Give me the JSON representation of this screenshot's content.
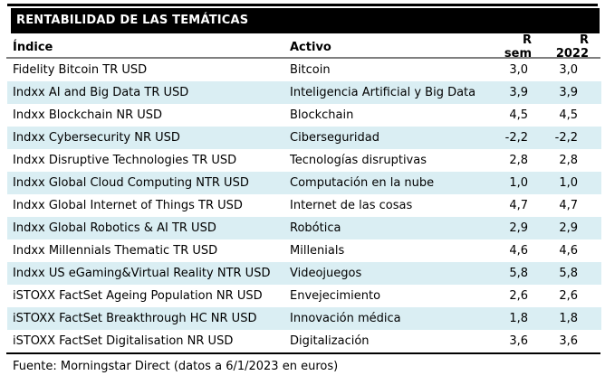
{
  "title": "RENTABILIDAD DE LAS TEMÁTICAS",
  "table": {
    "columns": [
      "Índice",
      "Activo",
      "R sem",
      "R 2022"
    ],
    "rows": [
      {
        "indice": "Fidelity Bitcoin TR USD",
        "activo": "Bitcoin",
        "r_sem": "3,0",
        "r_2022": "3,0"
      },
      {
        "indice": "Indxx AI and Big Data TR USD",
        "activo": "Inteligencia Artificial y Big Data",
        "r_sem": "3,9",
        "r_2022": "3,9"
      },
      {
        "indice": "Indxx Blockchain NR USD",
        "activo": "Blockchain",
        "r_sem": "4,5",
        "r_2022": "4,5"
      },
      {
        "indice": "Indxx Cybersecurity NR USD",
        "activo": "Ciberseguridad",
        "r_sem": "-2,2",
        "r_2022": "-2,2"
      },
      {
        "indice": "Indxx Disruptive Technologies TR USD",
        "activo": "Tecnologías disruptivas",
        "r_sem": "2,8",
        "r_2022": "2,8"
      },
      {
        "indice": "Indxx Global Cloud Computing NTR USD",
        "activo": "Computación en la nube",
        "r_sem": "1,0",
        "r_2022": "1,0"
      },
      {
        "indice": "Indxx Global Internet of Things TR USD",
        "activo": "Internet de las cosas",
        "r_sem": "4,7",
        "r_2022": "4,7"
      },
      {
        "indice": "Indxx Global Robotics & AI TR USD",
        "activo": "Robótica",
        "r_sem": "2,9",
        "r_2022": "2,9"
      },
      {
        "indice": "Indxx Millennials Thematic TR USD",
        "activo": "Millenials",
        "r_sem": "4,6",
        "r_2022": "4,6"
      },
      {
        "indice": "Indxx US eGaming&Virtual Reality NTR USD",
        "activo": "Videojuegos",
        "r_sem": "5,8",
        "r_2022": "5,8"
      },
      {
        "indice": "iSTOXX FactSet Ageing Population NR USD",
        "activo": "Envejecimiento",
        "r_sem": "2,6",
        "r_2022": "2,6"
      },
      {
        "indice": "iSTOXX FactSet Breakthrough HC NR USD",
        "activo": "Innovación médica",
        "r_sem": "1,8",
        "r_2022": "1,8"
      },
      {
        "indice": "iSTOXX FactSet Digitalisation NR USD",
        "activo": "Digitalización",
        "r_sem": "3,6",
        "r_2022": "3,6"
      }
    ]
  },
  "footer": {
    "source": "Fuente: Morningstar Direct (datos a 6/1/2023 en euros)"
  },
  "colors": {
    "title_bg": "#000000",
    "title_fg": "#ffffff",
    "row_band": "#daeef3",
    "header_rule": "#7f7f7f",
    "dark_rule": "#000000",
    "text": "#000000"
  },
  "chart_data": {
    "type": "table",
    "title": "RENTABILIDAD DE LAS TEMÁTICAS",
    "columns": [
      "Índice",
      "Activo",
      "R sem",
      "R 2022"
    ],
    "rows": [
      [
        "Fidelity Bitcoin TR USD",
        "Bitcoin",
        3.0,
        3.0
      ],
      [
        "Indxx AI and Big Data TR USD",
        "Inteligencia Artificial y Big Data",
        3.9,
        3.9
      ],
      [
        "Indxx Blockchain NR USD",
        "Blockchain",
        4.5,
        4.5
      ],
      [
        "Indxx Cybersecurity NR USD",
        "Ciberseguridad",
        -2.2,
        -2.2
      ],
      [
        "Indxx Disruptive Technologies TR USD",
        "Tecnologías disruptivas",
        2.8,
        2.8
      ],
      [
        "Indxx Global Cloud Computing NTR USD",
        "Computación en la nube",
        1.0,
        1.0
      ],
      [
        "Indxx Global Internet of Things TR USD",
        "Internet de las cosas",
        4.7,
        4.7
      ],
      [
        "Indxx Global Robotics & AI TR USD",
        "Robótica",
        2.9,
        2.9
      ],
      [
        "Indxx Millennials Thematic TR USD",
        "Millenials",
        4.6,
        4.6
      ],
      [
        "Indxx US eGaming&Virtual Reality NTR USD",
        "Videojuegos",
        5.8,
        5.8
      ],
      [
        "iSTOXX FactSet Ageing Population NR USD",
        "Envejecimiento",
        2.6,
        2.6
      ],
      [
        "iSTOXX FactSet Breakthrough HC NR USD",
        "Innovación médica",
        1.8,
        1.8
      ],
      [
        "iSTOXX FactSet Digitalisation NR USD",
        "Digitalización",
        3.6,
        3.6
      ]
    ],
    "note": "Fuente: Morningstar Direct (datos a 6/1/2023 en euros)",
    "values_unit": "%"
  }
}
